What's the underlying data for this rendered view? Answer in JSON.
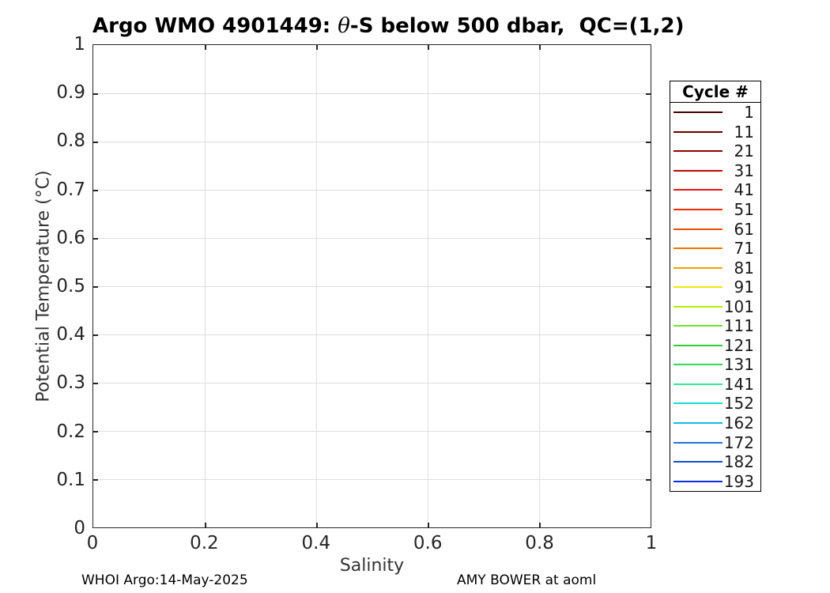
{
  "title": {
    "prefix": "Argo WMO 4901449: ",
    "theta": "θ",
    "suffix": "-S below 500 dbar,  QC=(1,2)"
  },
  "footers": {
    "left": "WHOI Argo:14-May-2025",
    "right": "AMY BOWER at aoml"
  },
  "chart_data": {
    "type": "line",
    "title": "Argo WMO 4901449: θ-S below 500 dbar,  QC=(1,2)",
    "xlabel": "Salinity",
    "ylabel": "Potential Temperature (°C)",
    "xlim": [
      0,
      1
    ],
    "ylim": [
      0,
      1
    ],
    "grid": true,
    "grid_color": "#dedede",
    "axis_color": "#262626",
    "xticks": {
      "values": [
        0,
        0.2,
        0.4,
        0.6,
        0.8,
        1
      ],
      "labels": [
        "0",
        "0.2",
        "0.4",
        "0.6",
        "0.8",
        "1"
      ]
    },
    "yticks": {
      "values": [
        0,
        0.1,
        0.2,
        0.3,
        0.4,
        0.5,
        0.6,
        0.7,
        0.8,
        0.9,
        1
      ],
      "labels": [
        "0",
        "0.1",
        "0.2",
        "0.3",
        "0.4",
        "0.5",
        "0.6",
        "0.7",
        "0.8",
        "0.9",
        "1"
      ]
    },
    "series": [],
    "legend": {
      "title": "Cycle #",
      "position": "outside-right",
      "entries": [
        {
          "label": "1",
          "color": "#3D0000"
        },
        {
          "label": "11",
          "color": "#660000"
        },
        {
          "label": "21",
          "color": "#8F0300"
        },
        {
          "label": "31",
          "color": "#BC0600"
        },
        {
          "label": "41",
          "color": "#E61310"
        },
        {
          "label": "51",
          "color": "#F32B00"
        },
        {
          "label": "61",
          "color": "#EE4D00"
        },
        {
          "label": "71",
          "color": "#EE7700"
        },
        {
          "label": "81",
          "color": "#F0A300"
        },
        {
          "label": "91",
          "color": "#F0E80A"
        },
        {
          "label": "101",
          "color": "#B2EE00"
        },
        {
          "label": "111",
          "color": "#70E433"
        },
        {
          "label": "121",
          "color": "#33CC33"
        },
        {
          "label": "131",
          "color": "#30D866"
        },
        {
          "label": "141",
          "color": "#2EE698"
        },
        {
          "label": "152",
          "color": "#12E0CC"
        },
        {
          "label": "162",
          "color": "#10BCEC"
        },
        {
          "label": "172",
          "color": "#2573DB"
        },
        {
          "label": "182",
          "color": "#1150C9"
        },
        {
          "label": "193",
          "color": "#0A2BE6"
        }
      ]
    }
  }
}
